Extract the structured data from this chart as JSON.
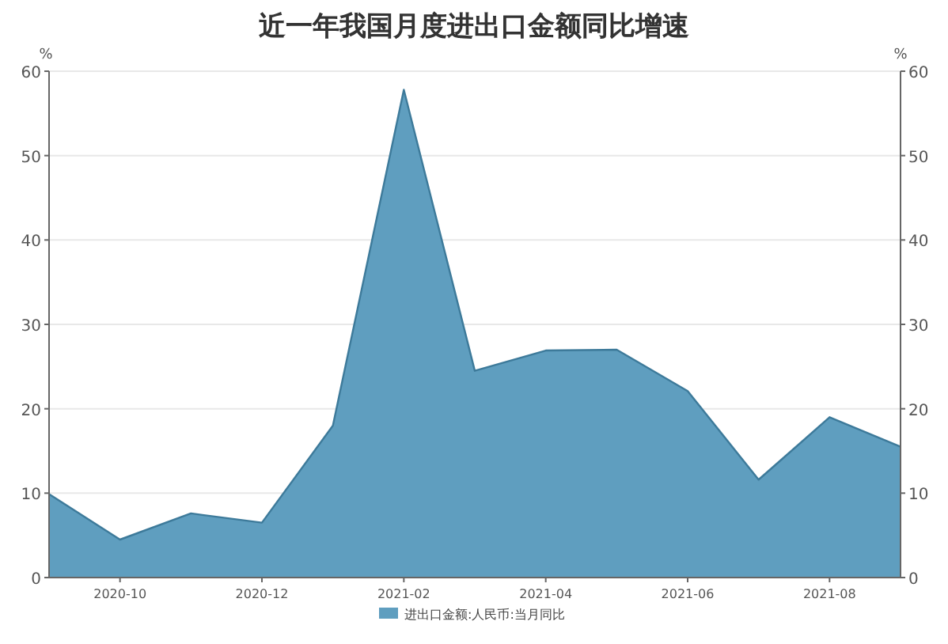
{
  "chart_data": {
    "type": "area",
    "title": "近一年我国月度进出口金额同比增速",
    "ylabel": "%",
    "y2label": "%",
    "categories": [
      null,
      "2020-10",
      null,
      "2020-12",
      null,
      "2021-02",
      null,
      "2021-04",
      null,
      "2021-06",
      null,
      "2021-08",
      null
    ],
    "series": [
      {
        "name": "进出口金额:人民币:当月同比",
        "color": "#5f9ebf",
        "values": [
          9.9,
          4.5,
          7.6,
          6.5,
          18,
          57.8,
          24.5,
          26.9,
          27,
          22.1,
          11.6,
          19,
          15.5
        ]
      }
    ],
    "ylim": [
      0,
      60
    ],
    "yticks": [
      0,
      10,
      20,
      30,
      40,
      50,
      60
    ],
    "y2lim": [
      0,
      60
    ],
    "y2ticks": [
      0,
      10,
      20,
      30,
      40,
      50,
      60
    ],
    "grid": "y",
    "legend": "bottom"
  }
}
